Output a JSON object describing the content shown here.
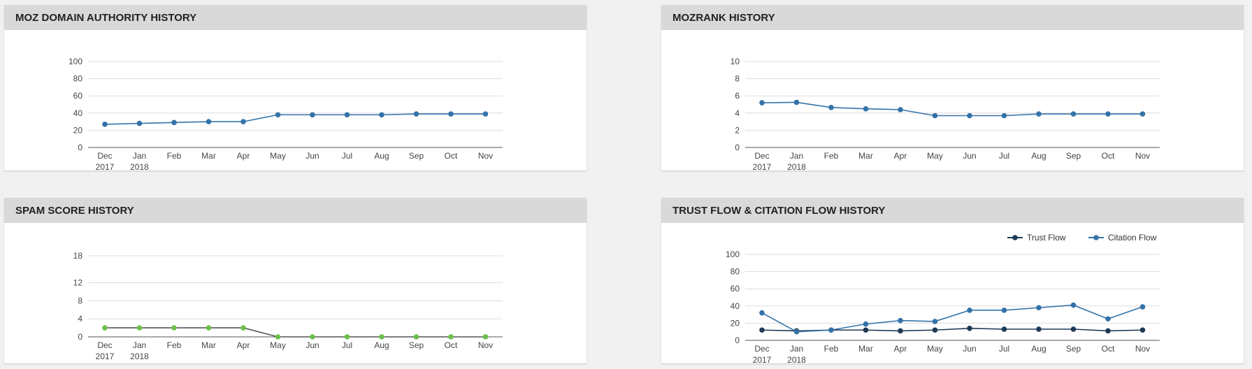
{
  "colors": {
    "blue": "#3473a9",
    "dark_navy": "#1d3a55",
    "green": "#6cc04a",
    "spam_line": "#555555",
    "grid": "#dddddd",
    "axis": "#555555"
  },
  "panels": [
    {
      "title": "MOZ DOMAIN AUTHORITY HISTORY"
    },
    {
      "title": "MOZRANK HISTORY"
    },
    {
      "title": "SPAM SCORE HISTORY"
    },
    {
      "title": "TRUST FLOW & CITATION FLOW HISTORY"
    }
  ],
  "chart_data": [
    {
      "type": "line",
      "title": "MOZ DOMAIN AUTHORITY HISTORY",
      "categories": [
        "Dec 2017",
        "Jan 2018",
        "Feb",
        "Mar",
        "Apr",
        "May",
        "Jun",
        "Jul",
        "Aug",
        "Sep",
        "Oct",
        "Nov"
      ],
      "ylim": [
        0,
        100
      ],
      "yticks": [
        0,
        20,
        40,
        60,
        80,
        100
      ],
      "grid": true,
      "series": [
        {
          "values": [
            27,
            28,
            29,
            30,
            30,
            38,
            38,
            38,
            38,
            39,
            39,
            39
          ],
          "color": "#3473a9",
          "marker": "#3473a9"
        }
      ]
    },
    {
      "type": "line",
      "title": "MOZRANK HISTORY",
      "categories": [
        "Dec 2017",
        "Jan 2018",
        "Feb",
        "Mar",
        "Apr",
        "May",
        "Jun",
        "Jul",
        "Aug",
        "Sep",
        "Oct",
        "Nov"
      ],
      "ylim": [
        0,
        10
      ],
      "yticks": [
        0,
        2,
        4,
        6,
        8,
        10
      ],
      "grid": true,
      "series": [
        {
          "values": [
            5.2,
            5.25,
            4.65,
            4.5,
            4.4,
            3.7,
            3.7,
            3.7,
            3.9,
            3.9,
            3.9,
            3.9
          ],
          "color": "#3473a9",
          "marker": "#3473a9"
        }
      ]
    },
    {
      "type": "line",
      "title": "SPAM SCORE HISTORY",
      "categories": [
        "Dec 2017",
        "Jan 2018",
        "Feb",
        "Mar",
        "Apr",
        "May",
        "Jun",
        "Jul",
        "Aug",
        "Sep",
        "Oct",
        "Nov"
      ],
      "ylim": [
        0,
        18
      ],
      "yticks": [
        0,
        4,
        8,
        12,
        18
      ],
      "grid": true,
      "series": [
        {
          "values": [
            2,
            2,
            2,
            2,
            2,
            0,
            0,
            0,
            0,
            0,
            0,
            0
          ],
          "color": "#555555",
          "marker": "#6cc04a"
        }
      ]
    },
    {
      "type": "line",
      "title": "TRUST FLOW & CITATION FLOW HISTORY",
      "categories": [
        "Dec 2017",
        "Jan 2018",
        "Feb",
        "Mar",
        "Apr",
        "May",
        "Jun",
        "Jul",
        "Aug",
        "Sep",
        "Oct",
        "Nov"
      ],
      "ylim": [
        0,
        100
      ],
      "yticks": [
        0,
        20,
        40,
        60,
        80,
        100
      ],
      "grid": true,
      "legend": "top-right",
      "series": [
        {
          "name": "Trust Flow",
          "values": [
            12,
            11,
            12,
            12,
            11,
            12,
            14,
            13,
            13,
            13,
            11,
            12
          ],
          "color": "#1d3a55",
          "marker": "#1d3a55"
        },
        {
          "name": "Citation Flow",
          "values": [
            32,
            10,
            12,
            19,
            23,
            22,
            35,
            35,
            38,
            41,
            25,
            39
          ],
          "color": "#3473a9",
          "marker": "#3473a9"
        }
      ]
    }
  ]
}
